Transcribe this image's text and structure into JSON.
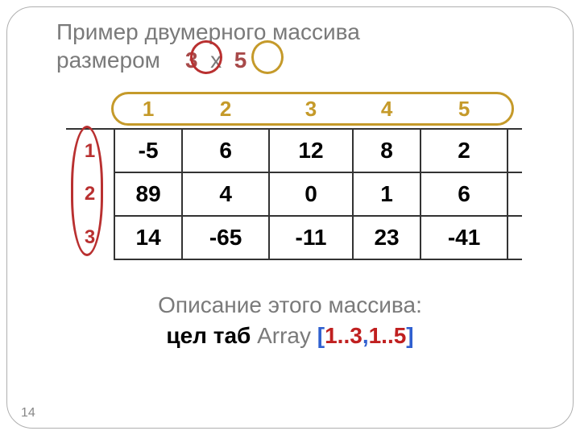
{
  "title_line1": "Пример двумерного массива",
  "title_line2_prefix": "размером",
  "dim_rows": "3",
  "dim_sep": "х",
  "dim_cols": "5",
  "table": {
    "col_headers": [
      "1",
      "2",
      "3",
      "4",
      "5"
    ],
    "row_labels": [
      "1",
      "2",
      "3"
    ],
    "cells": [
      [
        "-5",
        "6",
        "12",
        "8",
        "2"
      ],
      [
        "89",
        "4",
        "0",
        "1",
        "6"
      ],
      [
        "14",
        "-65",
        "-11",
        "23",
        "-41"
      ]
    ]
  },
  "description": {
    "line1": "Описание этого массива:",
    "keyword": "цел таб",
    "array_name": "Array",
    "bracket_open": "[",
    "range_rows": "1..3",
    "comma": ",",
    "range_cols": "1..5",
    "bracket_close": "]"
  },
  "page_number": "14",
  "colors": {
    "title_text": "#7a7a7a",
    "dim_text": "#a84a4a",
    "row_accent": "#b93030",
    "col_accent": "#c59a2a",
    "cell_text": "#000000",
    "border": "#333333",
    "bracket": "#3060d0",
    "range": "#c02020",
    "frame": "#b0b0b0"
  }
}
